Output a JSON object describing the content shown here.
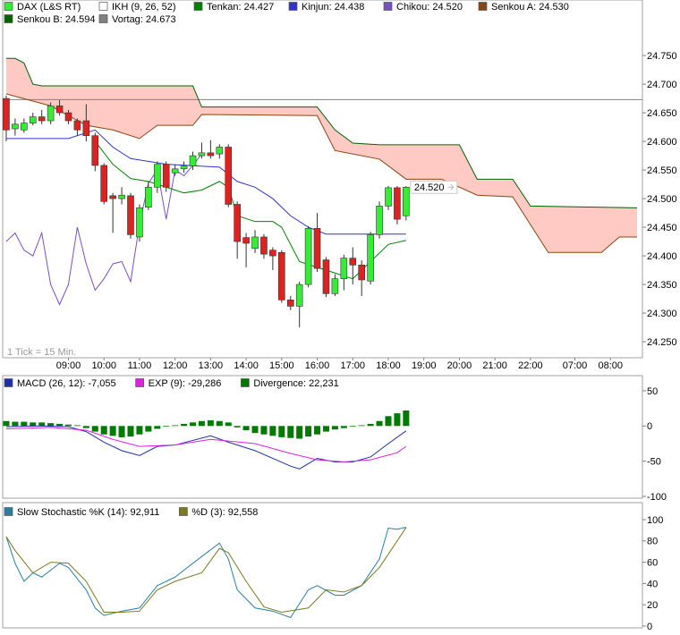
{
  "chart_data": [
    {
      "type": "candlestick",
      "indicator": "IKH (9, 26, 52)",
      "note": "1 Tick = 15 Min.",
      "xlim": [
        -0.4,
        71.6
      ],
      "xticks": [
        {
          "value": 7,
          "label": "09:00"
        },
        {
          "value": 11,
          "label": "10:00"
        },
        {
          "value": 15,
          "label": "11:00"
        },
        {
          "value": 19,
          "label": "12:00"
        },
        {
          "value": 23,
          "label": "13:00"
        },
        {
          "value": 27,
          "label": "14:00"
        },
        {
          "value": 31,
          "label": "15:00"
        },
        {
          "value": 35,
          "label": "16:00"
        },
        {
          "value": 39,
          "label": "17:00"
        },
        {
          "value": 43,
          "label": "18:00"
        },
        {
          "value": 47,
          "label": "19:00"
        },
        {
          "value": 51,
          "label": "20:00"
        },
        {
          "value": 55,
          "label": "21:00"
        },
        {
          "value": 59,
          "label": "22:00"
        },
        {
          "value": 64,
          "label": "07:00"
        },
        {
          "value": 68,
          "label": "08:00"
        }
      ],
      "ylim": [
        24.222,
        24.847
      ],
      "yticks": [
        {
          "value": 24.25,
          "label": "24.250"
        },
        {
          "value": 24.3,
          "label": "24.300"
        },
        {
          "value": 24.35,
          "label": "24.350"
        },
        {
          "value": 24.4,
          "label": "24.400"
        },
        {
          "value": 24.45,
          "label": "24.450"
        },
        {
          "value": 24.5,
          "label": "24.500"
        },
        {
          "value": 24.55,
          "label": "24.550"
        },
        {
          "value": 24.6,
          "label": "24.600"
        },
        {
          "value": 24.65,
          "label": "24.650"
        },
        {
          "value": 24.7,
          "label": "24.700"
        },
        {
          "value": 24.75,
          "label": "24.750"
        }
      ],
      "candles": {
        "name": "DAX (L&S RT)",
        "up_color": "#33ee33",
        "down_color": "#dd2222",
        "x": [
          0,
          1,
          2,
          3,
          4,
          5,
          6,
          7,
          8,
          9,
          10,
          11,
          12,
          13,
          14,
          15,
          16,
          17,
          18,
          19,
          20,
          21,
          22,
          23,
          24,
          25,
          26,
          27,
          28,
          29,
          30,
          31,
          32,
          33,
          34,
          35,
          36,
          37,
          38,
          39,
          40,
          41,
          42,
          43,
          44,
          45
        ],
        "open": [
          24.675,
          24.622,
          24.62,
          24.632,
          24.643,
          24.636,
          24.662,
          24.65,
          24.636,
          24.636,
          24.61,
          24.558,
          24.505,
          24.5,
          24.505,
          24.433,
          24.485,
          24.52,
          24.56,
          24.545,
          24.552,
          24.557,
          24.575,
          24.58,
          24.578,
          24.59,
          24.49,
          24.432,
          24.413,
          24.433,
          24.41,
          24.406,
          24.323,
          24.312,
          24.35,
          24.448,
          24.393,
          24.334,
          24.36,
          24.396,
          24.384,
          24.356,
          24.437,
          24.487,
          24.519,
          24.47
        ],
        "high": [
          24.68,
          24.64,
          24.64,
          24.65,
          24.655,
          24.668,
          24.672,
          24.655,
          24.64,
          24.665,
          24.615,
          24.562,
          24.51,
          24.52,
          24.51,
          24.49,
          24.53,
          24.565,
          24.565,
          24.56,
          24.565,
          24.582,
          24.598,
          24.602,
          24.595,
          24.595,
          24.495,
          24.44,
          24.445,
          24.438,
          24.415,
          24.41,
          24.33,
          24.355,
          24.452,
          24.475,
          24.398,
          24.368,
          24.402,
          24.415,
          24.392,
          24.442,
          24.495,
          24.522,
          24.522,
          24.522
        ],
        "low": [
          24.6,
          24.61,
          24.615,
          24.628,
          24.63,
          24.63,
          24.645,
          24.63,
          24.61,
          24.6,
          24.548,
          24.49,
          24.44,
          24.49,
          24.43,
          24.425,
          24.48,
          24.51,
          24.512,
          24.54,
          24.545,
          24.55,
          24.57,
          24.57,
          24.57,
          24.485,
          24.395,
          24.38,
          24.405,
          24.395,
          24.375,
          24.318,
          24.305,
          24.275,
          24.345,
          24.372,
          24.328,
          24.33,
          24.34,
          24.35,
          24.33,
          24.35,
          24.43,
          24.48,
          24.455,
          24.462
        ],
        "close": [
          24.62,
          24.63,
          24.632,
          24.643,
          24.636,
          24.662,
          24.65,
          24.636,
          24.62,
          24.61,
          24.558,
          24.495,
          24.5,
          24.506,
          24.437,
          24.484,
          24.52,
          24.56,
          24.52,
          24.552,
          24.557,
          24.575,
          24.58,
          24.575,
          24.59,
          24.49,
          24.425,
          24.422,
          24.433,
          24.403,
          24.4,
          24.323,
          24.312,
          24.35,
          24.448,
          24.378,
          24.334,
          24.36,
          24.396,
          24.384,
          24.358,
          24.437,
          24.487,
          24.519,
          24.464,
          24.52
        ]
      },
      "last_value": {
        "value": 24.52,
        "label": "24.520"
      },
      "reference": {
        "name": "Vortag: 24.673",
        "value": 24.673,
        "color": "#808080"
      },
      "cloud_color": "#ffcac4",
      "series": [
        {
          "name": "Tenkan: 24.427",
          "color": "#008000",
          "x": [
            10,
            12,
            14,
            16,
            18,
            20,
            22,
            24,
            25,
            26,
            28,
            30,
            31,
            33,
            35,
            37,
            39,
            41,
            43,
            45
          ],
          "values": [
            24.6,
            24.56,
            24.535,
            24.53,
            24.52,
            24.51,
            24.515,
            24.53,
            24.52,
            24.47,
            24.46,
            24.46,
            24.45,
            24.39,
            24.38,
            24.37,
            24.36,
            24.39,
            24.42,
            24.427
          ]
        },
        {
          "name": "Kinjun: 24.438",
          "color": "#3333cc",
          "x": [
            0,
            7,
            10,
            12,
            14,
            18,
            24,
            26,
            28,
            30,
            32,
            34,
            36,
            45
          ],
          "values": [
            24.605,
            24.605,
            24.62,
            24.59,
            24.57,
            24.56,
            24.555,
            24.53,
            24.52,
            24.5,
            24.47,
            24.45,
            24.438,
            24.438
          ]
        },
        {
          "name": "Chikou: 24.520",
          "color": "#7a4fc0",
          "x": [
            0,
            1,
            2,
            3,
            4,
            5,
            6,
            7,
            8,
            9,
            10,
            11,
            12,
            13,
            14,
            15,
            16,
            17,
            18,
            19,
            20,
            21,
            22
          ],
          "values": [
            24.425,
            24.44,
            24.41,
            24.4,
            24.44,
            24.35,
            24.315,
            24.35,
            24.45,
            24.386,
            24.34,
            24.36,
            24.386,
            24.39,
            24.355,
            24.456,
            24.527,
            24.55,
            24.464,
            24.55,
            24.54,
            24.558,
            24.578
          ]
        },
        {
          "name": "Senkou A: 24.530",
          "color": "#8b4513",
          "x": [
            0,
            5,
            9,
            12,
            15,
            17,
            21,
            22,
            35,
            37,
            42,
            45,
            49,
            53,
            57,
            61,
            67,
            69,
            71
          ],
          "values": [
            24.683,
            24.662,
            24.628,
            24.62,
            24.605,
            24.628,
            24.628,
            24.647,
            24.645,
            24.584,
            24.569,
            24.534,
            24.534,
            24.506,
            24.503,
            24.406,
            24.406,
            24.433,
            24.433
          ]
        },
        {
          "name": "Senkou B: 24.594",
          "color": "#006400",
          "x": [
            0,
            1,
            2,
            3,
            4,
            5,
            21,
            22,
            35,
            37,
            39,
            42,
            51,
            53,
            57,
            59,
            71
          ],
          "values": [
            24.745,
            24.745,
            24.737,
            24.7,
            24.697,
            24.697,
            24.697,
            24.66,
            24.66,
            24.62,
            24.597,
            24.594,
            24.594,
            24.534,
            24.534,
            24.487,
            24.484
          ]
        }
      ]
    },
    {
      "type": "combo",
      "xlim": [
        -0.4,
        71.6
      ],
      "ylim": [
        -102.5,
        71.5
      ],
      "yticks": [
        50,
        0,
        -50,
        -100
      ],
      "series": [
        {
          "name": "MACD (26, 12): -7,055",
          "kind": "line",
          "color": "#1f2fa8",
          "x": [
            0,
            4,
            7,
            9,
            11,
            13,
            15,
            17,
            19,
            23,
            25,
            28,
            32,
            33,
            35,
            37,
            39,
            41,
            43,
            45
          ],
          "values": [
            -1,
            0,
            -1,
            -8,
            -23,
            -35,
            -42,
            -29,
            -27,
            -14,
            -23,
            -35,
            -57,
            -61,
            -46,
            -51,
            -51,
            -44,
            -25,
            -7
          ]
        },
        {
          "name": "EXP (9): -29,286",
          "kind": "line",
          "color": "#e020e0",
          "x": [
            0,
            5,
            9,
            12,
            15,
            19,
            23,
            28,
            32,
            35,
            38,
            41,
            44,
            45
          ],
          "values": [
            -4,
            -2,
            -6,
            -19,
            -29,
            -27,
            -19,
            -25,
            -39,
            -48,
            -51,
            -48,
            -38,
            -29
          ]
        },
        {
          "name": "Divergence: 22,231",
          "kind": "bar",
          "color": "#007a00",
          "x": [
            0,
            1,
            2,
            3,
            4,
            5,
            6,
            7,
            8,
            9,
            10,
            11,
            12,
            13,
            14,
            15,
            16,
            17,
            18,
            19,
            20,
            21,
            22,
            23,
            24,
            25,
            26,
            27,
            28,
            29,
            30,
            31,
            32,
            33,
            34,
            35,
            36,
            37,
            38,
            39,
            40,
            41,
            42,
            43,
            44,
            45
          ],
          "values": [
            7,
            6,
            6,
            5,
            5,
            4,
            3,
            2,
            1,
            -3,
            -8,
            -12,
            -14,
            -16,
            -15,
            -12,
            -8,
            -4,
            -1,
            1,
            3,
            5,
            7,
            8,
            7,
            5,
            -2,
            -6,
            -10,
            -12,
            -14,
            -16,
            -17,
            -18,
            -15,
            -12,
            -8,
            -5,
            -3,
            -1,
            1,
            3,
            7,
            14,
            18,
            22
          ]
        }
      ]
    },
    {
      "type": "line",
      "xlim": [
        -0.4,
        71.6
      ],
      "ylim": [
        -1.7,
        116
      ],
      "yticks": [
        100,
        80,
        60,
        40,
        20,
        0
      ],
      "series": [
        {
          "name": "Slow Stochastic %K (14): 92,911",
          "kind": "line",
          "color": "#2a7fa0",
          "x": [
            0,
            1,
            2,
            3,
            4,
            6,
            7,
            9,
            10,
            11,
            13,
            15,
            17,
            19,
            21,
            24,
            25,
            26,
            28,
            30,
            32,
            34,
            35,
            37,
            38,
            40,
            42,
            43,
            44,
            45
          ],
          "values": [
            84,
            59,
            42,
            50,
            46,
            59,
            55,
            34,
            17,
            10,
            14,
            17,
            38,
            46,
            59,
            78,
            63,
            34,
            17,
            14,
            8,
            34,
            38,
            29,
            29,
            38,
            63,
            92,
            91,
            92.9
          ]
        },
        {
          "name": "%D (3): 92,558",
          "kind": "line",
          "color": "#7a7a20",
          "x": [
            0,
            1,
            3,
            5,
            7,
            9,
            11,
            13,
            15,
            17,
            19,
            22,
            24,
            25,
            27,
            29,
            31,
            34,
            36,
            38,
            40,
            42,
            44,
            45
          ],
          "values": [
            84,
            71,
            50,
            60,
            59,
            42,
            13,
            13,
            14,
            34,
            42,
            50,
            73,
            69,
            42,
            18,
            13,
            17,
            34,
            32,
            38,
            55,
            80,
            92.6
          ]
        }
      ]
    }
  ]
}
